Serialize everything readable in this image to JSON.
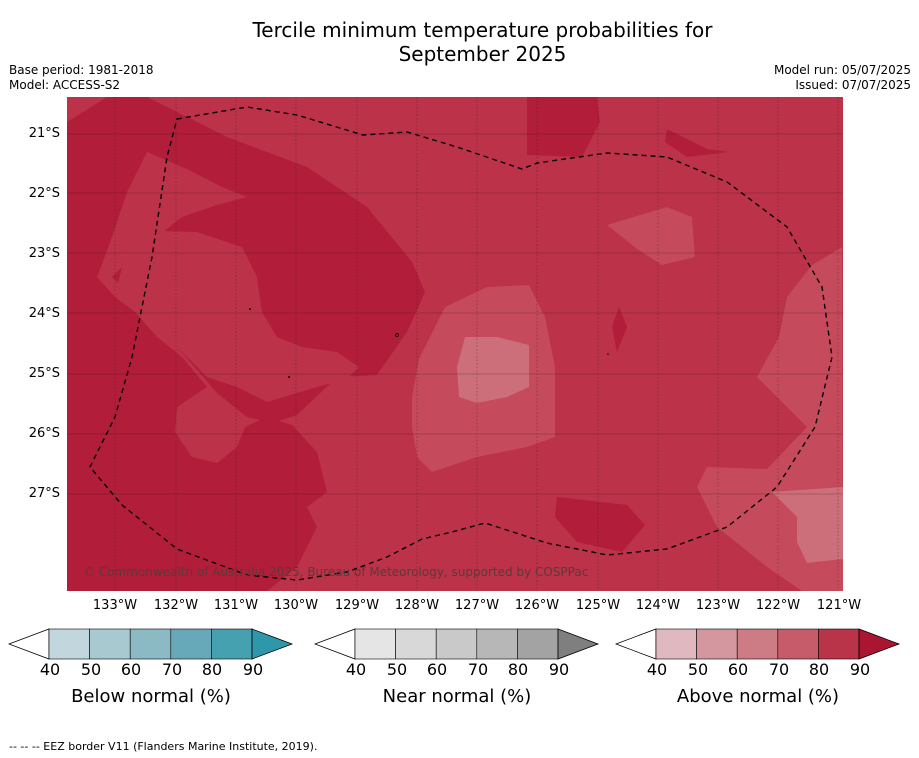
{
  "title_line1": "Tercile minimum temperature probabilities for",
  "title_line2": "September 2025",
  "meta": {
    "base_period": "Base period: 1981-2018",
    "model": "Model: ACCESS-S2",
    "model_run": "Model run: 05/07/2025",
    "issued": "Issued: 07/07/2025"
  },
  "map": {
    "copyright": "© Commonwealth of Australia 2025, Bureau of Meteorology, supported by COSPPac",
    "lat_labels": [
      "21°S",
      "22°S",
      "23°S",
      "24°S",
      "25°S",
      "26°S",
      "27°S"
    ],
    "lon_labels": [
      "133°W",
      "132°W",
      "131°W",
      "130°W",
      "129°W",
      "128°W",
      "127°W",
      "126°W",
      "125°W",
      "124°W",
      "123°W",
      "122°W",
      "121°W"
    ],
    "colors": {
      "above_90": "#b21d3a",
      "above_80": "#bb3249",
      "above_70": "#c85666",
      "above_60": "#cd6f7b"
    }
  },
  "colorbars": [
    {
      "name": "below",
      "title": "Below normal (%)",
      "ticks": [
        "40",
        "50",
        "60",
        "70",
        "80",
        "90"
      ],
      "colors": [
        "#c1d7dd",
        "#a8c9d0",
        "#8bb9c4",
        "#67a9b8",
        "#45a0b0",
        "#2f97aa"
      ]
    },
    {
      "name": "near",
      "title": "Near normal (%)",
      "ticks": [
        "40",
        "50",
        "60",
        "70",
        "80",
        "90"
      ],
      "colors": [
        "#e5e5e5",
        "#d8d8d8",
        "#c9c9c9",
        "#b7b7b7",
        "#a3a3a3",
        "#7f7f7f"
      ]
    },
    {
      "name": "above",
      "title": "Above normal (%)",
      "ticks": [
        "40",
        "50",
        "60",
        "70",
        "80",
        "90"
      ],
      "colors": [
        "#e0b8bf",
        "#d5979f",
        "#cd7b85",
        "#c65c6a",
        "#b93449",
        "#aa1532"
      ]
    }
  ],
  "footnote": "--  --  -- EEZ border V11 (Flanders Marine Institute, 2019)."
}
